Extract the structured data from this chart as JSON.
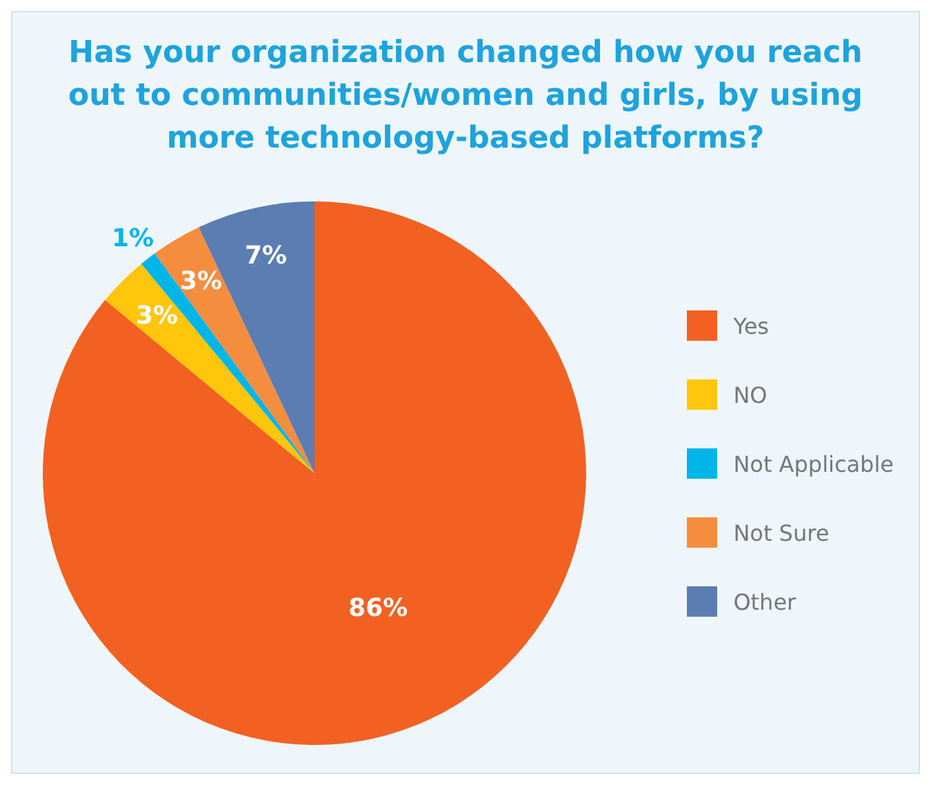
{
  "chart_data": {
    "type": "pie",
    "title": "Has your organization changed how you reach out to communities/women and girls, by using more technology-based platforms?",
    "categories": [
      "Yes",
      "NO",
      "Not Applicable",
      "Not Sure",
      "Other"
    ],
    "values": [
      86,
      3,
      1,
      3,
      7
    ],
    "colors": [
      "#f26122",
      "#ffc60b",
      "#00b5e8",
      "#f58d3f",
      "#5b7db1"
    ],
    "value_labels": [
      "86%",
      "3%",
      "1%",
      "3%",
      "7%"
    ],
    "legend": "right"
  }
}
